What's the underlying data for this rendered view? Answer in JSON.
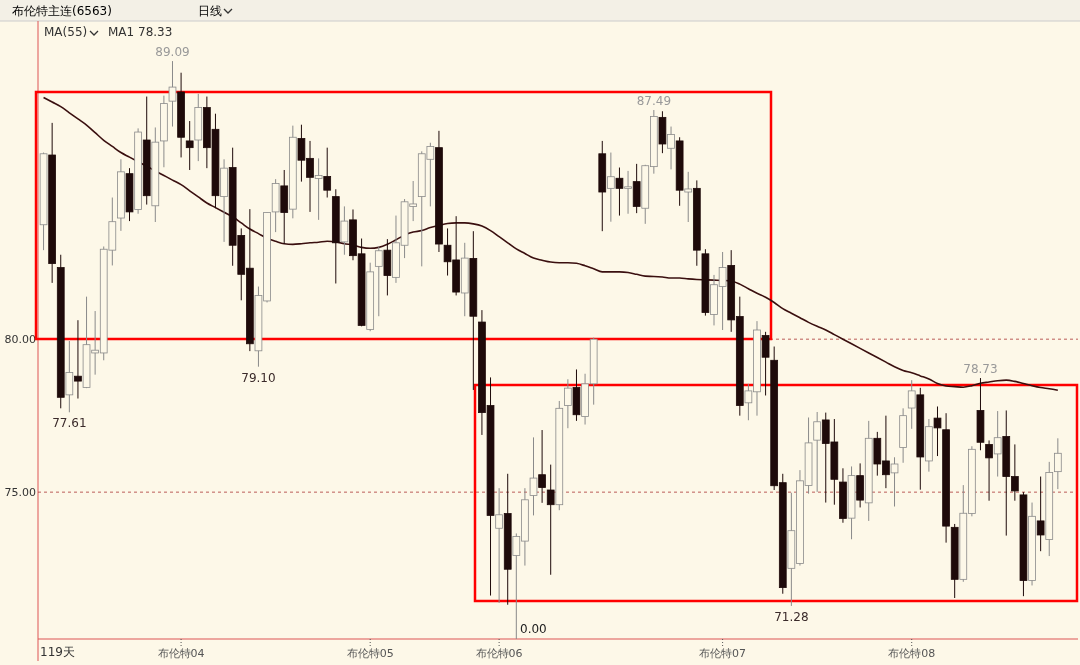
{
  "chart_data": {
    "type": "candlestick",
    "title": "布伦特主连(6563)",
    "subtitle": "日线",
    "categories": [
      null,
      null,
      null,
      null,
      null,
      null,
      null,
      null,
      null,
      null,
      null,
      null,
      null,
      null,
      null,
      null,
      "布伦特04",
      null,
      null,
      null,
      null,
      null,
      null,
      null,
      null,
      null,
      null,
      null,
      null,
      null,
      null,
      null,
      null,
      null,
      null,
      null,
      null,
      null,
      "布伦特05",
      null,
      null,
      null,
      null,
      null,
      null,
      null,
      null,
      null,
      null,
      null,
      null,
      null,
      null,
      "布伦特06",
      null,
      null,
      null,
      null,
      null,
      null,
      null,
      null,
      null,
      null,
      null,
      null,
      null,
      null,
      null,
      null,
      null,
      null,
      null,
      null,
      null,
      null,
      null,
      null,
      null,
      "布伦特07",
      null,
      null,
      null,
      null,
      null,
      null,
      null,
      null,
      null,
      null,
      null,
      null,
      null,
      null,
      null,
      null,
      null,
      null,
      null,
      null,
      null,
      "布伦特08",
      null,
      null,
      null,
      null,
      null,
      null,
      null,
      null,
      null,
      null,
      null,
      null,
      null,
      null,
      null,
      null,
      null
    ],
    "ohlc": [
      [
        83.74,
        86.1,
        82.91,
        86.06
      ],
      [
        86.02,
        87.07,
        81.84,
        82.47
      ],
      [
        82.34,
        82.76,
        77.74,
        78.1
      ],
      [
        78.18,
        79.94,
        77.61,
        78.91
      ],
      [
        78.79,
        80.62,
        78.06,
        78.63
      ],
      [
        78.42,
        81.39,
        78.4,
        79.82
      ],
      [
        79.55,
        80.92,
        78.84,
        79.64
      ],
      [
        79.55,
        83.03,
        79.31,
        82.94
      ],
      [
        82.91,
        84.63,
        82.41,
        83.84
      ],
      [
        83.96,
        85.88,
        83.54,
        85.47
      ],
      [
        85.41,
        85.59,
        83.86,
        84.16
      ],
      [
        84.24,
        86.89,
        84.1,
        86.77
      ],
      [
        86.51,
        87.93,
        84.4,
        84.69
      ],
      [
        84.36,
        86.92,
        83.83,
        86.44
      ],
      [
        86.48,
        87.96,
        85.62,
        87.7
      ],
      [
        87.78,
        89.09,
        86.95,
        88.24
      ],
      [
        88.08,
        88.71,
        85.94,
        86.6
      ],
      [
        86.48,
        87.13,
        85.53,
        86.26
      ],
      [
        86.51,
        88.02,
        85.82,
        87.57
      ],
      [
        87.57,
        87.93,
        85.59,
        86.26
      ],
      [
        86.86,
        87.37,
        84.28,
        84.69
      ],
      [
        84.66,
        85.88,
        83.18,
        85.59
      ],
      [
        85.61,
        86.26,
        82.4,
        83.07
      ],
      [
        83.39,
        83.62,
        81.27,
        82.12
      ],
      [
        82.32,
        84.25,
        79.61,
        79.85
      ],
      [
        79.62,
        81.72,
        79.1,
        81.43
      ],
      [
        81.25,
        84.14,
        81.2,
        84.14
      ],
      [
        84.16,
        85.23,
        83.5,
        85.09
      ],
      [
        85.01,
        85.53,
        83.11,
        84.14
      ],
      [
        84.25,
        86.98,
        83.95,
        86.6
      ],
      [
        86.56,
        87.01,
        85.15,
        85.85
      ],
      [
        85.91,
        86.48,
        84.16,
        85.29
      ],
      [
        85.25,
        85.91,
        83.9,
        85.35
      ],
      [
        85.32,
        86.26,
        84.63,
        84.87
      ],
      [
        84.66,
        84.9,
        81.82,
        83.15
      ],
      [
        83.18,
        84.34,
        82.76,
        83.86
      ],
      [
        83.9,
        84.24,
        82.58,
        82.73
      ],
      [
        82.79,
        83.29,
        80.42,
        80.45
      ],
      [
        80.32,
        82.5,
        80.26,
        82.2
      ],
      [
        82.38,
        83.03,
        80.75,
        82.89
      ],
      [
        82.91,
        83.27,
        81.43,
        82.08
      ],
      [
        82.02,
        84.04,
        81.84,
        83.15
      ],
      [
        83.07,
        84.58,
        82.65,
        84.49
      ],
      [
        84.34,
        85.17,
        83.86,
        84.42
      ],
      [
        84.66,
        86.14,
        82.38,
        86.06
      ],
      [
        85.88,
        86.42,
        84.34,
        86.3
      ],
      [
        86.26,
        86.81,
        82.85,
        83.11
      ],
      [
        83.07,
        83.62,
        82.08,
        82.53
      ],
      [
        82.59,
        84.02,
        81.43,
        81.54
      ],
      [
        81.51,
        83.15,
        80.75,
        82.65
      ],
      [
        82.64,
        83.53,
        78.34,
        80.75
      ],
      [
        80.56,
        80.95,
        76.87,
        77.6
      ],
      [
        77.83,
        78.75,
        71.62,
        74.24
      ],
      [
        73.82,
        75.13,
        71.38,
        74.26
      ],
      [
        74.3,
        75.6,
        71.32,
        72.48
      ],
      [
        72.93,
        73.65,
        70.2,
        73.55
      ],
      [
        73.4,
        75.13,
        72.6,
        74.75
      ],
      [
        74.89,
        76.79,
        74.24,
        75.46
      ],
      [
        75.57,
        77.03,
        74.65,
        75.15
      ],
      [
        75.07,
        75.9,
        72.3,
        74.59
      ],
      [
        74.59,
        77.98,
        74.41,
        77.74
      ],
      [
        77.83,
        78.69,
        77.09,
        78.4
      ],
      [
        78.42,
        79.01,
        77.33,
        77.53
      ],
      [
        77.47,
        78.87,
        77.21,
        78.54
      ],
      [
        78.54,
        80.05,
        77.86,
        80.0
      ],
      [
        86.06,
        86.48,
        83.53,
        84.81
      ],
      [
        84.93,
        86.1,
        83.84,
        85.31
      ],
      [
        85.26,
        85.61,
        84.04,
        84.93
      ],
      [
        84.93,
        85.5,
        84.1,
        84.98
      ],
      [
        85.15,
        85.73,
        84.12,
        84.34
      ],
      [
        84.28,
        85.7,
        83.77,
        85.67
      ],
      [
        85.64,
        87.49,
        85.41,
        87.28
      ],
      [
        87.25,
        87.45,
        86.08,
        86.38
      ],
      [
        86.24,
        86.95,
        85.55,
        86.69
      ],
      [
        86.48,
        86.6,
        84.36,
        84.87
      ],
      [
        84.81,
        85.47,
        83.83,
        84.91
      ],
      [
        84.93,
        85.19,
        82.4,
        82.91
      ],
      [
        82.79,
        82.94,
        80.77,
        80.87
      ],
      [
        80.81,
        82.1,
        80.45,
        81.78
      ],
      [
        81.72,
        82.85,
        80.3,
        82.34
      ],
      [
        82.41,
        82.91,
        80.24,
        80.63
      ],
      [
        80.74,
        81.39,
        77.5,
        77.83
      ],
      [
        77.92,
        78.54,
        77.35,
        78.31
      ],
      [
        78.28,
        80.59,
        77.5,
        80.3
      ],
      [
        80.12,
        80.24,
        78.16,
        79.41
      ],
      [
        79.31,
        79.76,
        75.07,
        75.21
      ],
      [
        75.31,
        75.6,
        71.68,
        71.88
      ],
      [
        72.51,
        74.98,
        71.28,
        73.74
      ],
      [
        72.67,
        75.72,
        72.6,
        75.37
      ],
      [
        75.22,
        77.44,
        74.95,
        76.61
      ],
      [
        76.7,
        77.62,
        75.01,
        77.3
      ],
      [
        77.36,
        77.6,
        74.66,
        76.59
      ],
      [
        76.64,
        77.39,
        74.59,
        75.42
      ],
      [
        75.33,
        75.78,
        74.0,
        74.14
      ],
      [
        74.15,
        75.84,
        73.46,
        75.54
      ],
      [
        75.54,
        75.94,
        74.5,
        74.74
      ],
      [
        74.65,
        77.33,
        74.06,
        76.76
      ],
      [
        76.76,
        76.97,
        75.54,
        75.92
      ],
      [
        76.02,
        77.5,
        75.13,
        75.57
      ],
      [
        75.63,
        76.14,
        74.53,
        75.92
      ],
      [
        76.46,
        77.74,
        75.96,
        77.5
      ],
      [
        77.75,
        78.66,
        77.07,
        78.31
      ],
      [
        78.18,
        78.41,
        75.08,
        76.15
      ],
      [
        76.02,
        77.39,
        75.67,
        77.14
      ],
      [
        77.42,
        77.8,
        76.18,
        77.1
      ],
      [
        77.04,
        77.58,
        73.35,
        73.89
      ],
      [
        73.85,
        73.96,
        71.54,
        72.15
      ],
      [
        72.15,
        75.23,
        72.07,
        74.31
      ],
      [
        74.3,
        76.5,
        74.21,
        76.4
      ],
      [
        77.67,
        78.73,
        76.37,
        76.63
      ],
      [
        76.56,
        76.69,
        74.72,
        76.12
      ],
      [
        76.25,
        77.65,
        75.51,
        76.78
      ],
      [
        76.82,
        77.67,
        73.58,
        75.51
      ],
      [
        75.51,
        76.56,
        74.72,
        75.04
      ],
      [
        74.91,
        75.0,
        71.6,
        72.11
      ],
      [
        72.11,
        74.66,
        71.95,
        74.21
      ],
      [
        74.06,
        75.51,
        73.07,
        73.6
      ],
      [
        73.45,
        75.99,
        72.91,
        75.64
      ],
      [
        75.67,
        76.76,
        75.1,
        76.27
      ]
    ],
    "series": [
      {
        "type": "line",
        "color": "#3a0f0f",
        "values": [
          87.9,
          87.75,
          87.6,
          87.4,
          87.2,
          87.0,
          86.75,
          86.5,
          86.3,
          86.1,
          85.95,
          85.8,
          85.65,
          85.5,
          85.35,
          85.2,
          85.05,
          84.85,
          84.65,
          84.45,
          84.3,
          84.15,
          84.0,
          83.8,
          83.6,
          83.45,
          83.3,
          83.2,
          83.12,
          83.1,
          83.12,
          83.15,
          83.17,
          83.2,
          83.18,
          83.12,
          83.08,
          83.0,
          82.97,
          83.0,
          83.1,
          83.25,
          83.4,
          83.5,
          83.55,
          83.65,
          83.72,
          83.78,
          83.8,
          83.8,
          83.77,
          83.7,
          83.55,
          83.35,
          83.15,
          82.95,
          82.8,
          82.65,
          82.58,
          82.52,
          82.5,
          82.5,
          82.48,
          82.4,
          82.3,
          82.2,
          82.2,
          82.2,
          82.18,
          82.12,
          82.06,
          82.05,
          82.03,
          82.0,
          82.0,
          81.97,
          81.95,
          81.94,
          81.93,
          81.92,
          81.9,
          81.8,
          81.65,
          81.5,
          81.37,
          81.2,
          81.0,
          80.85,
          80.7,
          80.55,
          80.42,
          80.3,
          80.15,
          80.0,
          79.85,
          79.7,
          79.55,
          79.4,
          79.25,
          79.1,
          78.98,
          78.9,
          78.8,
          78.7,
          78.55,
          78.47,
          78.45,
          78.43,
          78.48,
          78.56,
          78.6,
          78.64,
          78.66,
          78.62,
          78.55,
          78.48,
          78.42,
          78.38,
          78.33
        ]
      }
    ],
    "ylim": [
      70.2,
      90.4
    ],
    "yticks": [
      {
        "value": 75,
        "label": "75.00"
      },
      {
        "value": 80,
        "label": "80.00"
      }
    ],
    "grid": "y",
    "annotations": [
      "MA(55)",
      "MA1 78.33",
      "119天",
      "0.00",
      {
        "text": "89.09",
        "y": 89.09
      },
      {
        "text": "87.49",
        "y": 87.49
      },
      {
        "text": "77.61",
        "y": 77.61
      },
      {
        "text": "79.10",
        "y": 79.1
      },
      {
        "text": "71.28",
        "y": 71.28
      },
      {
        "text": "78.73",
        "y": 78.73
      }
    ]
  }
}
